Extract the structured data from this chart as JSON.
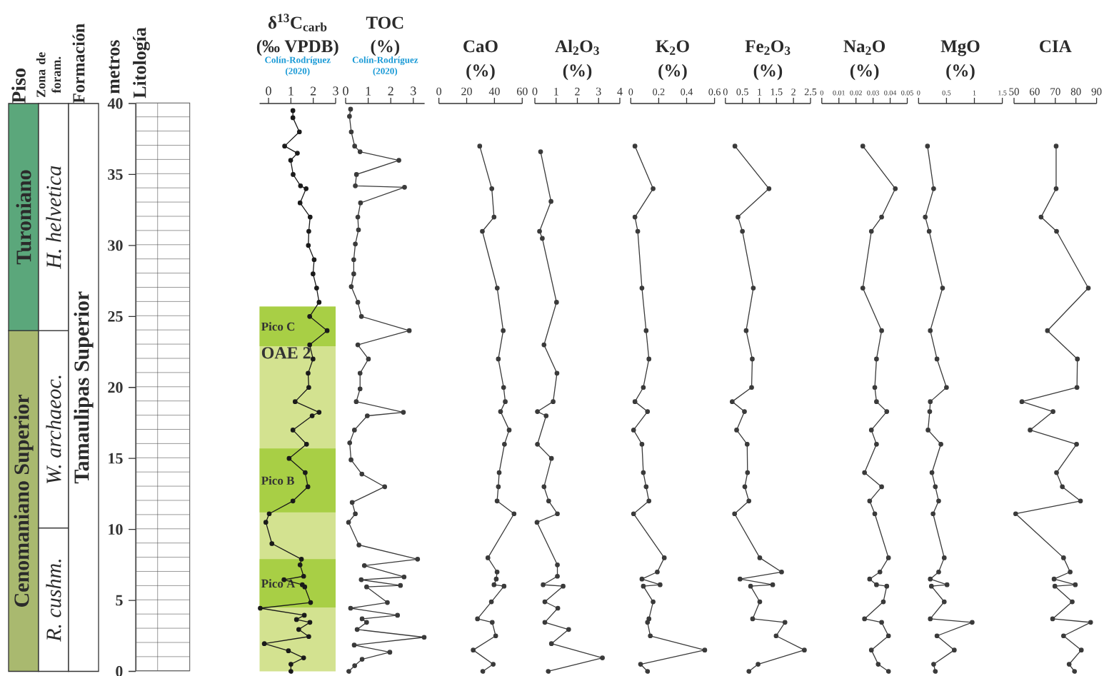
{
  "chart_data": [
    {
      "type": "bar",
      "stacked": true,
      "categories": [
        "Piso",
        "Zona de foram.",
        "Formación"
      ],
      "ylabel": "metros",
      "annotations": [
        "Litología"
      ],
      "ylim": [
        0,
        40
      ],
      "yticks": [
        0,
        5,
        10,
        15,
        20,
        25,
        30,
        35,
        40
      ],
      "series": [
        {
          "name": "Cenomaniano Superior",
          "color": "#a9b96f",
          "values": [
            24,
            null,
            null
          ]
        },
        {
          "name": "Turoniano",
          "color": "#5ba77b",
          "values": [
            16,
            null,
            null
          ]
        },
        {
          "name": "R. cushm.",
          "color": "#ffffff",
          "values": [
            null,
            10.1,
            null
          ]
        },
        {
          "name": "W. archaeoc.",
          "color": "#ffffff",
          "values": [
            null,
            13.9,
            null
          ]
        },
        {
          "name": "H. helvetica",
          "color": "#ffffff",
          "values": [
            null,
            16,
            null
          ]
        },
        {
          "name": "Tamaulipas Superior",
          "color": "#ffffff",
          "values": [
            null,
            null,
            40
          ]
        }
      ]
    },
    {
      "type": "line",
      "title": "δ$^{13}$C$_{carb}$",
      "xlabel": "(‰ VPDB)",
      "subtitle": "Colín-Rodríguez (2020)",
      "color": "#1a1a1a",
      "marker": "circle",
      "line_style": "solid",
      "tick_labels": "x",
      "xlim": [
        -0.4,
        3
      ],
      "xticks": [
        0,
        1,
        2,
        3
      ],
      "ylim": [
        0,
        40
      ],
      "bands": [
        {
          "axis": "y",
          "from": 0,
          "to": 25.7,
          "label": "OAE 2",
          "color": "#d3e290"
        },
        {
          "axis": "y",
          "from": 22.9,
          "to": 25.7,
          "label": "Pico C",
          "color": "#a8cf45"
        },
        {
          "axis": "y",
          "from": 11.2,
          "to": 15.7,
          "label": "Pico B",
          "color": "#a8cf45"
        },
        {
          "axis": "y",
          "from": 4.5,
          "to": 7.9,
          "label": "Pico A",
          "color": "#a8cf45"
        }
      ],
      "x": [
        1.09,
        1.09,
        1.38,
        0.72,
        1.29,
        0.99,
        1.1,
        1.43,
        1.68,
        1.41,
        1.86,
        1.8,
        1.78,
        2.04,
        1.99,
        2.15,
        2.26,
        1.84,
        2.62,
        1.84,
        1.99,
        1.77,
        1.8,
        1.19,
        2.26,
        1.95,
        1.09,
        1.7,
        0.92,
        1.64,
        1.76,
        1.09,
        0.03,
        -0.12,
        0.15,
        1.47,
        1.41,
        1.57,
        0.69,
        1.51,
        1.62,
        1.88,
        -0.37,
        1.6,
        1.25,
        1.85,
        1.35,
        1.8,
        -0.19,
        0.89,
        1.57,
        1.0,
        1.0
      ],
      "values": [
        39.5,
        39.0,
        38.0,
        37.0,
        36.5,
        36.0,
        35.0,
        34.2,
        34.0,
        33.0,
        32.0,
        31.0,
        30.0,
        29.0,
        28.0,
        27.0,
        26.0,
        25.0,
        24.0,
        23.0,
        22.0,
        21.0,
        20.0,
        19.0,
        18.25,
        18.0,
        17.0,
        16.0,
        15.0,
        14.0,
        13.0,
        12.0,
        11.1,
        10.5,
        9.0,
        7.9,
        7.5,
        6.7,
        6.45,
        6.1,
        5.95,
        4.85,
        4.45,
        3.95,
        3.65,
        3.45,
        2.95,
        2.45,
        1.95,
        1.45,
        0.95,
        0.5,
        0
      ]
    },
    {
      "type": "line",
      "title": "TOC",
      "xlabel": "(%)",
      "subtitle": "Colín-Rodríguez (2020)",
      "color": "#3a3a3a",
      "marker": "circle",
      "line_style": "solid",
      "tick_labels": "x",
      "xlim": [
        0,
        3.5
      ],
      "xticks": [
        0,
        1,
        2,
        3
      ],
      "ylim": [
        0,
        40
      ],
      "x": [
        0.22,
        0.17,
        0.25,
        0.4,
        0.64,
        2.36,
        0.48,
        0.43,
        2.61,
        0.66,
        0.54,
        0.57,
        0.43,
        0.36,
        0.36,
        0.25,
        0.54,
        0.7,
        2.82,
        0.54,
        1.01,
        0.64,
        0.64,
        0.47,
        2.56,
        0.96,
        0.39,
        0.18,
        0.24,
        0.72,
        1.73,
        0.29,
        0.43,
        0.13,
        0.59,
        3.19,
        0.83,
        2.59,
        0.69,
        2.43,
        0.93,
        1.85,
        0.22,
        2.3,
        0.73,
        0.93,
        0.51,
        3.48,
        0.38,
        1.96,
        0.73,
        0.4,
        0.14
      ],
      "values": [
        39.6,
        39.1,
        38.0,
        37.0,
        36.6,
        36.0,
        35.0,
        34.2,
        34.1,
        33.0,
        32.0,
        31.1,
        30.1,
        29.0,
        28.0,
        27.1,
        26.0,
        25.0,
        24.0,
        23.0,
        22.0,
        21.0,
        19.9,
        19.0,
        18.25,
        18.0,
        17.0,
        16.1,
        14.9,
        13.9,
        13.0,
        11.9,
        11.1,
        10.5,
        8.9,
        7.9,
        7.45,
        6.65,
        6.45,
        6.05,
        5.95,
        4.85,
        4.45,
        3.95,
        3.7,
        3.45,
        2.95,
        2.4,
        1.85,
        1.35,
        0.85,
        0.4,
        0
      ]
    },
    {
      "type": "line",
      "title": "CaO",
      "xlabel": "(%)",
      "color": "#3a3a3a",
      "marker": "circle",
      "line_style": "solid",
      "tick_labels": "x",
      "xlim": [
        0,
        60
      ],
      "xticks": [
        0,
        20,
        40,
        60
      ],
      "ylim": [
        0,
        40
      ],
      "x": [
        29.4,
        38.1,
        39.7,
        31.3,
        42.0,
        46.3,
        42.8,
        46.6,
        47.8,
        44.4,
        50.6,
        47.2,
        43.4,
        42.8,
        41.9,
        54.1,
        35.3,
        41.9,
        41.3,
        39.7,
        46.9,
        37.8,
        27.8,
        38.4,
        40.9,
        24.7,
        39.1,
        31.6
      ],
      "values": [
        37,
        34,
        32,
        31,
        27,
        24,
        22,
        20,
        19,
        18.3,
        17,
        16,
        14,
        13,
        12,
        11.1,
        8,
        7,
        6.5,
        6.1,
        6,
        4.9,
        3.7,
        3.45,
        2.5,
        1.5,
        0.5,
        0
      ]
    },
    {
      "type": "line",
      "title": "Al$_{2}$O$_{3}$",
      "xlabel": "(%)",
      "color": "#3a3a3a",
      "marker": "circle",
      "line_style": "solid",
      "tick_labels": "x",
      "xlim": [
        0,
        4
      ],
      "xticks": [
        0,
        1,
        2,
        3,
        4
      ],
      "ylim": [
        0,
        40
      ],
      "x": [
        0.27,
        0.76,
        0.22,
        0.35,
        1.02,
        0.43,
        1.04,
        0.86,
        0.12,
        0.53,
        0.12,
        0.78,
        0.43,
        0.65,
        1.06,
        0.1,
        1.06,
        1.06,
        0.39,
        1.33,
        0.47,
        1.08,
        0.47,
        1.59,
        0.78,
        3.18,
        0.63
      ],
      "values": [
        36.6,
        33.1,
        31.0,
        30.5,
        26.0,
        23.0,
        21.0,
        19.0,
        18.3,
        18.0,
        16.0,
        15.0,
        13.0,
        12.0,
        11.1,
        10.5,
        7.5,
        6.7,
        6.1,
        6.0,
        4.9,
        4.45,
        3.45,
        2.95,
        1.95,
        0.95,
        0
      ]
    },
    {
      "type": "line",
      "title": "K$_{2}$O",
      "xlabel": "(%)",
      "color": "#3a3a3a",
      "marker": "circle",
      "line_style": "solid",
      "tick_labels": "x",
      "xlim": [
        0,
        0.6
      ],
      "xticks": [
        0,
        0.2,
        0.4,
        0.6
      ],
      "ylim": [
        0,
        40
      ],
      "x": [
        0.03,
        0.16,
        0.03,
        0.05,
        0.08,
        0.11,
        0.13,
        0.09,
        0.03,
        0.12,
        0.02,
        0.08,
        0.09,
        0.11,
        0.13,
        0.02,
        0.24,
        0.19,
        0.08,
        0.21,
        0.09,
        0.16,
        0.13,
        0.12,
        0.14,
        0.53,
        0.07,
        0.12
      ],
      "values": [
        37,
        34,
        32,
        31,
        27,
        24,
        22,
        20,
        19,
        18.3,
        17,
        16,
        14,
        13,
        12,
        11.1,
        8,
        7,
        6.5,
        6.1,
        6,
        4.9,
        3.7,
        3.45,
        2.5,
        1.5,
        0.5,
        0
      ]
    },
    {
      "type": "line",
      "title": "Fe$_{2}$O$_{3}$",
      "xlabel": "(%)",
      "color": "#3a3a3a",
      "marker": "circle",
      "line_style": "solid",
      "tick_labels": "x",
      "xlim": [
        0,
        2.5
      ],
      "xticks": [
        0,
        0.5,
        1,
        1.5,
        2,
        2.5
      ],
      "ylim": [
        0,
        40
      ],
      "x": [
        0.28,
        1.28,
        0.37,
        0.5,
        0.82,
        0.61,
        0.79,
        0.77,
        0.2,
        0.56,
        0.33,
        0.64,
        0.65,
        0.57,
        0.69,
        0.27,
        1.01,
        1.65,
        0.43,
        1.39,
        0.74,
        1.01,
        0.8,
        1.75,
        1.49,
        2.32,
        0.96,
        0.69
      ],
      "values": [
        37,
        34,
        32,
        31,
        27,
        24,
        22,
        20,
        19,
        18.3,
        17,
        16,
        14,
        13,
        12,
        11.1,
        8,
        7,
        6.5,
        6.1,
        6,
        4.9,
        3.7,
        3.45,
        2.5,
        1.5,
        0.5,
        0
      ]
    },
    {
      "type": "line",
      "title": "Na$_{2}$O",
      "xlabel": "(%)",
      "color": "#3a3a3a",
      "marker": "circle",
      "line_style": "solid",
      "tick_labels": "x",
      "xlim": [
        0,
        0.05
      ],
      "xticks": [
        0,
        0.01,
        0.02,
        0.03,
        0.04,
        0.05
      ],
      "ylim": [
        0,
        40
      ],
      "x": [
        0.024,
        0.043,
        0.035,
        0.029,
        0.024,
        0.035,
        0.032,
        0.031,
        0.032,
        0.038,
        0.029,
        0.032,
        0.025,
        0.035,
        0.028,
        0.031,
        0.039,
        0.034,
        0.028,
        0.032,
        0.038,
        0.036,
        0.025,
        0.035,
        0.039,
        0.029,
        0.033,
        0.039
      ],
      "values": [
        37,
        34,
        32,
        31,
        27,
        24,
        22,
        20,
        19,
        18.3,
        17,
        16,
        14,
        13,
        12,
        11.1,
        8,
        7,
        6.5,
        6.1,
        6,
        4.9,
        3.7,
        3.45,
        2.5,
        1.5,
        0.5,
        0
      ]
    },
    {
      "type": "line",
      "title": "MgO",
      "xlabel": "(%)",
      "color": "#3a3a3a",
      "marker": "circle",
      "line_style": "solid",
      "tick_labels": "x",
      "xlim": [
        0,
        1.5
      ],
      "xticks": [
        0,
        0.5,
        1,
        1.5
      ],
      "ylim": [
        0,
        40
      ],
      "x": [
        0.16,
        0.27,
        0.12,
        0.19,
        0.43,
        0.21,
        0.33,
        0.5,
        0.21,
        0.2,
        0.17,
        0.4,
        0.24,
        0.3,
        0.36,
        0.26,
        0.46,
        0.36,
        0.21,
        0.51,
        0.23,
        0.46,
        0.21,
        0.96,
        0.33,
        0.64,
        0.27,
        0.3
      ],
      "values": [
        37,
        34,
        32,
        31,
        27,
        24,
        22,
        20,
        19,
        18.3,
        17,
        16,
        14,
        13,
        12,
        11.1,
        8,
        7,
        6.5,
        6.1,
        6,
        4.9,
        3.7,
        3.45,
        2.5,
        1.5,
        0.5,
        0
      ]
    },
    {
      "type": "line",
      "title": "CIA",
      "color": "#3a3a3a",
      "marker": "circle",
      "line_style": "solid",
      "tick_labels": "x",
      "xlim": [
        50,
        90
      ],
      "xticks": [
        50,
        60,
        70,
        80,
        90
      ],
      "ylim": [
        0,
        40
      ],
      "x": [
        70.4,
        70.4,
        63.1,
        70.6,
        86.0,
        66.2,
        80.7,
        80.5,
        53.8,
        68.9,
        57.8,
        80.3,
        70.6,
        73.4,
        82.2,
        50.8,
        74.0,
        77.2,
        69.4,
        79.7,
        69.8,
        78.2,
        68.7,
        87.1,
        74.0,
        82.6,
        76.7,
        79.3
      ],
      "values": [
        37,
        34,
        32,
        31,
        27,
        24,
        22,
        20,
        19,
        18.3,
        17,
        16,
        14,
        13,
        12,
        11.1,
        8,
        7,
        6.5,
        6.1,
        6,
        4.9,
        3.7,
        3.45,
        2.5,
        1.5,
        0.5,
        0
      ]
    }
  ]
}
